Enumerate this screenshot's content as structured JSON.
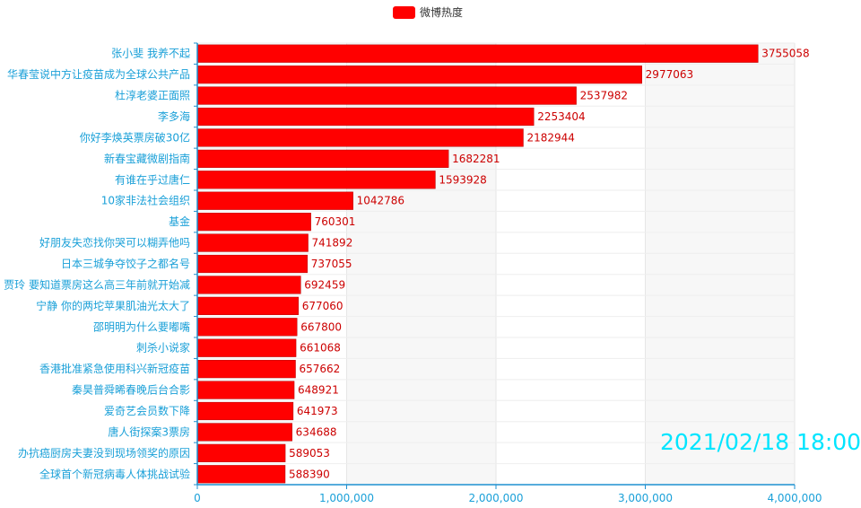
{
  "legend": {
    "label": "微博热度",
    "color": "#ff0000"
  },
  "timestamp": "2021/02/18 18:00",
  "colors": {
    "bar": "#ff0000",
    "bar_label": "#cc0000",
    "axis": "#1e90d0",
    "category_text": "#1aa0d8",
    "tick_text": "#1aa0d8",
    "band": "#f7f7f7",
    "grid": "#e6e6e6"
  },
  "chart_data": {
    "type": "bar",
    "orientation": "horizontal",
    "categories": [
      "张小斐 我养不起",
      "华春莹说中方让疫苗成为全球公共产品",
      "杜淳老婆正面照",
      "李多海",
      "你好李焕英票房破30亿",
      "新春宝藏微剧指南",
      "有谁在乎过唐仁",
      "10家非法社会组织",
      "基金",
      "好朋友失恋找你哭可以糊弄他吗",
      "日本三城争夺饺子之都名号",
      "贾玲 要知道票房这么高三年前就开始减",
      "宁静 你的两坨苹果肌油光太大了",
      "邵明明为什么要嘟嘴",
      "刺杀小说家",
      "香港批准紧急使用科兴新冠疫苗",
      "秦昊普舜晞春晚后台合影",
      "爱奇艺会员数下降",
      "唐人街探案3票房",
      "办抗癌厨房夫妻没到现场领奖的原因",
      "全球首个新冠病毒人体挑战试验"
    ],
    "series": [
      {
        "name": "微博热度",
        "values": [
          3755058,
          2977063,
          2537982,
          2253404,
          2182944,
          1682281,
          1593928,
          1042786,
          760301,
          741892,
          737055,
          692459,
          677060,
          667800,
          661068,
          657662,
          648921,
          641973,
          634688,
          589053,
          588390
        ],
        "labels": [
          "3755058",
          "2977063",
          "2537982",
          "2253404",
          "2182944",
          "1682281",
          "1593928",
          "1042786",
          "760301",
          "741892",
          "737055",
          "692459",
          "677060",
          "667800",
          "661068",
          "657662",
          "648921",
          "641973",
          "634688",
          "589053",
          "588390"
        ]
      }
    ],
    "xlim": [
      0,
      4000000
    ],
    "x_ticks": [
      0,
      1000000,
      2000000,
      3000000,
      4000000
    ],
    "x_tick_labels": [
      "0",
      "1,000,000",
      "2,000,000",
      "3,000,000",
      "4,000,000"
    ],
    "grid": true
  }
}
